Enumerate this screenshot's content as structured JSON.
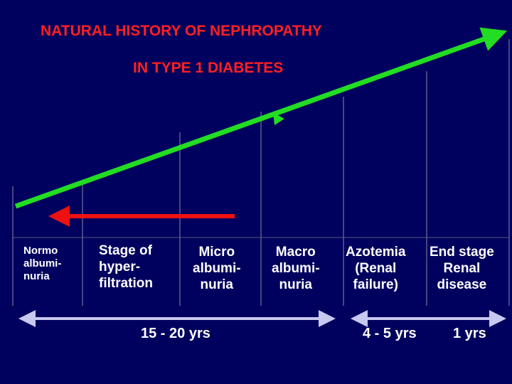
{
  "title_line1": "NATURAL HISTORY OF NEPHROPATHY",
  "title_line2": "IN TYPE 1 DIABETES",
  "stages": [
    {
      "label": "Normo\nalbumi-\nnuria"
    },
    {
      "label": "Stage of\nhyper-\nfiltration"
    },
    {
      "label": "Micro\nalbumi-\nnuria"
    },
    {
      "label": "Macro\nalbumi-\nnuria"
    },
    {
      "label": "Azotemia\n(Renal\nfailure)"
    },
    {
      "label": "End stage\nRenal\ndisease"
    }
  ],
  "durations": [
    {
      "label": "15 - 20 yrs"
    },
    {
      "label": "4 - 5 yrs"
    },
    {
      "label": "1  yrs"
    }
  ],
  "colors": {
    "background": "#00005e",
    "title": "#ff2020",
    "progression_arrow": "#22dd22",
    "regression_arrow": "#ee1111",
    "timeline_arrow": "#c8c8f0",
    "divider": "#8a8aa8"
  }
}
